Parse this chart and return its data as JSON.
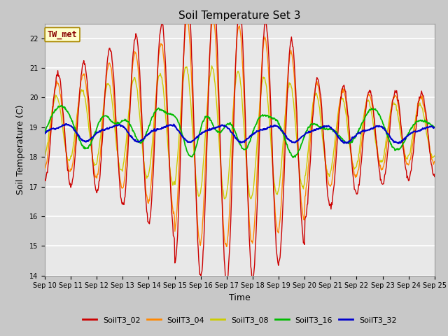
{
  "title": "Soil Temperature Set 3",
  "xlabel": "Time",
  "ylabel": "Soil Temperature (C)",
  "ylim": [
    14.0,
    22.5
  ],
  "yticks": [
    14.0,
    15.0,
    16.0,
    17.0,
    18.0,
    19.0,
    20.0,
    21.0,
    22.0
  ],
  "xlim": [
    10,
    25
  ],
  "num_points": 720,
  "series_colors": {
    "SoilT3_02": "#cc0000",
    "SoilT3_04": "#ff8800",
    "SoilT3_08": "#cccc00",
    "SoilT3_16": "#00bb00",
    "SoilT3_32": "#0000cc"
  },
  "legend_colors": [
    "#cc0000",
    "#ff8800",
    "#cccc00",
    "#00bb00",
    "#0000cc"
  ],
  "legend_labels": [
    "SoilT3_02",
    "SoilT3_04",
    "SoilT3_08",
    "SoilT3_16",
    "SoilT3_32"
  ],
  "annotation_text": "TW_met",
  "annotation_color": "#880000",
  "annotation_bg": "#ffffcc",
  "annotation_border": "#aa8800",
  "fig_bg": "#c8c8c8",
  "plot_bg": "#e8e8e8",
  "grid_color": "#ffffff",
  "tick_fontsize": 7,
  "title_fontsize": 11,
  "label_fontsize": 9
}
